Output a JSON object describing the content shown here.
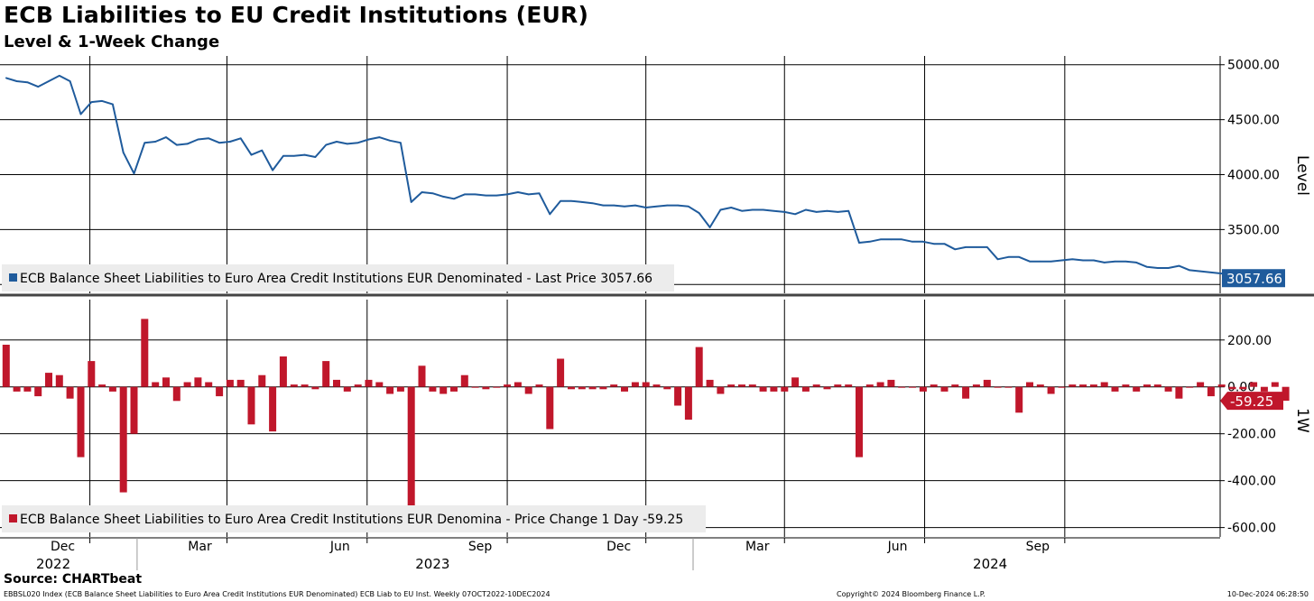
{
  "header": {
    "title": "ECB Liabilities to EU Credit Institutions (EUR)",
    "subtitle": "Level & 1-Week Change"
  },
  "footer": {
    "source": "Source: CHARTbeat",
    "description": "EBBSL020 Index (ECB Balance Sheet Liabilities to Euro Area Credit Institutions EUR Denominated) ECB Liab to EU Inst. Weekly 07OCT2022-10DEC2024",
    "copyright": "Copyright© 2024 Bloomberg Finance L.P.",
    "timestamp": "10-Dec-2024 06:28:50"
  },
  "colors": {
    "level_line": "#1f5b9c",
    "change_bar": "#c0172b",
    "grid": "#000000"
  },
  "chart_data": [
    {
      "type": "line",
      "panel": "top",
      "axis_label": "Level",
      "legend": "ECB Balance Sheet Liabilities to Euro Area Credit Institutions EUR Denominated - Last Price 3057.66",
      "last_value_label": "3057.66",
      "ylim": [
        2920,
        5080
      ],
      "yticks": [
        "5000.00",
        "4500.00",
        "4000.00",
        "3500.00"
      ],
      "ytick_values": [
        5000,
        4500,
        4000,
        3500
      ],
      "x_start": "2022-10-07",
      "x_step_days": 7,
      "values": [
        4880,
        4850,
        4840,
        4800,
        4850,
        4900,
        4850,
        4550,
        4660,
        4670,
        4640,
        4200,
        4010,
        4290,
        4300,
        4340,
        4270,
        4280,
        4320,
        4330,
        4290,
        4300,
        4330,
        4180,
        4220,
        4040,
        4170,
        4170,
        4180,
        4160,
        4270,
        4300,
        4280,
        4290,
        4320,
        4340,
        4310,
        4290,
        3750,
        3840,
        3830,
        3800,
        3780,
        3820,
        3820,
        3810,
        3810,
        3820,
        3840,
        3820,
        3830,
        3640,
        3760,
        3760,
        3750,
        3740,
        3720,
        3720,
        3710,
        3720,
        3700,
        3710,
        3720,
        3720,
        3710,
        3650,
        3520,
        3680,
        3700,
        3670,
        3680,
        3680,
        3670,
        3660,
        3640,
        3680,
        3660,
        3670,
        3660,
        3670,
        3380,
        3390,
        3410,
        3410,
        3410,
        3390,
        3390,
        3370,
        3370,
        3320,
        3340,
        3340,
        3340,
        3230,
        3250,
        3250,
        3210,
        3210,
        3210,
        3220,
        3230,
        3220,
        3220,
        3200,
        3210,
        3210,
        3200,
        3160,
        3150,
        3150,
        3170,
        3130,
        3120,
        3110,
        3100,
        3110,
        3120,
        3100,
        3080,
        3057.66
      ]
    },
    {
      "type": "bar",
      "panel": "bottom",
      "axis_label": "1W",
      "legend": "ECB Balance Sheet Liabilities to Euro Area Credit Institutions EUR Denomina - Price Change 1 Day -59.25",
      "last_value_label": "-59.25",
      "ylim": [
        -640,
        380
      ],
      "yticks": [
        "200.00",
        "0.00",
        "-200.00",
        "-400.00",
        "-600.00"
      ],
      "ytick_values": [
        200,
        0,
        -200,
        -400,
        -600
      ],
      "x_start": "2022-10-07",
      "x_step_days": 7,
      "values": [
        180,
        -20,
        -20,
        -40,
        60,
        50,
        -50,
        -300,
        110,
        10,
        -20,
        -450,
        -200,
        290,
        20,
        40,
        -60,
        20,
        40,
        20,
        -40,
        30,
        30,
        -160,
        50,
        -190,
        130,
        10,
        10,
        -10,
        110,
        30,
        -20,
        10,
        30,
        20,
        -30,
        -20,
        -540,
        90,
        -20,
        -30,
        -20,
        50,
        0,
        -10,
        0,
        10,
        20,
        -30,
        10,
        -180,
        120,
        -10,
        -10,
        -10,
        -10,
        10,
        -20,
        20,
        20,
        10,
        -10,
        -80,
        -140,
        170,
        30,
        -30,
        10,
        10,
        10,
        -20,
        -20,
        -20,
        40,
        -20,
        10,
        -10,
        10,
        10,
        -300,
        10,
        20,
        30,
        0,
        0,
        -20,
        10,
        -20,
        10,
        -50,
        10,
        30,
        0,
        0,
        -110,
        20,
        10,
        -30,
        0,
        10,
        10,
        10,
        20,
        -20,
        10,
        -20,
        10,
        10,
        -20,
        -50,
        0,
        20,
        -40,
        10,
        -10,
        -10,
        20,
        -20,
        20,
        -59.25
      ]
    }
  ],
  "x_axis": {
    "month_labels": [
      {
        "label": "Dec",
        "date": "2022-12-01"
      },
      {
        "label": "Mar",
        "date": "2023-03-01"
      },
      {
        "label": "Jun",
        "date": "2023-06-01"
      },
      {
        "label": "Sep",
        "date": "2023-09-01"
      },
      {
        "label": "Dec",
        "date": "2023-12-01"
      },
      {
        "label": "Mar",
        "date": "2024-03-01"
      },
      {
        "label": "Jun",
        "date": "2024-06-01"
      },
      {
        "label": "Sep",
        "date": "2024-09-01"
      }
    ],
    "year_labels": [
      {
        "label": "2022",
        "date": "2022-11-07"
      },
      {
        "label": "2023",
        "date": "2023-07-14"
      },
      {
        "label": "2024",
        "date": "2024-07-14"
      }
    ],
    "year_separators": [
      "2023-01-01",
      "2024-01-01"
    ]
  }
}
